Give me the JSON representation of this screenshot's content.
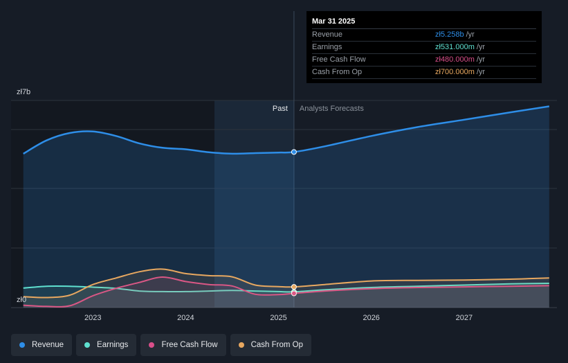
{
  "chart_data": {
    "type": "line",
    "y_axis": {
      "ticks": [
        "zł7b",
        "zł0"
      ],
      "ylim": [
        0,
        7000
      ]
    },
    "x_axis": {
      "ticks": [
        "2023",
        "2024",
        "2025",
        "2026",
        "2027"
      ],
      "xlim": [
        "2022-04",
        "2027-12"
      ]
    },
    "period_labels": {
      "past": "Past",
      "forecast": "Analysts Forecasts"
    },
    "grid": true,
    "legend_position": "bottom-left",
    "series": [
      {
        "name": "Revenue",
        "color": "#2e8ee8",
        "points": [
          [
            "2022-04",
            5200
          ],
          [
            "2022-07",
            5650
          ],
          [
            "2022-10",
            5900
          ],
          [
            "2023-01",
            5950
          ],
          [
            "2023-04",
            5800
          ],
          [
            "2023-07",
            5550
          ],
          [
            "2023-10",
            5400
          ],
          [
            "2024-01",
            5350
          ],
          [
            "2024-04",
            5250
          ],
          [
            "2024-07",
            5200
          ],
          [
            "2024-10",
            5220
          ],
          [
            "2025-01",
            5240
          ],
          [
            "2025-03",
            5258
          ],
          [
            "2025-07",
            5450
          ],
          [
            "2026-01",
            5800
          ],
          [
            "2026-07",
            6100
          ],
          [
            "2027-01",
            6350
          ],
          [
            "2027-07",
            6600
          ],
          [
            "2027-12",
            6800
          ]
        ]
      },
      {
        "name": "Earnings",
        "color": "#5fe0d0",
        "points": [
          [
            "2022-04",
            660
          ],
          [
            "2022-07",
            720
          ],
          [
            "2022-10",
            720
          ],
          [
            "2023-01",
            690
          ],
          [
            "2023-04",
            650
          ],
          [
            "2023-07",
            560
          ],
          [
            "2023-10",
            540
          ],
          [
            "2024-01",
            540
          ],
          [
            "2024-04",
            560
          ],
          [
            "2024-07",
            580
          ],
          [
            "2024-10",
            560
          ],
          [
            "2025-01",
            540
          ],
          [
            "2025-03",
            531
          ],
          [
            "2025-07",
            600
          ],
          [
            "2026-01",
            680
          ],
          [
            "2026-07",
            720
          ],
          [
            "2027-01",
            760
          ],
          [
            "2027-07",
            800
          ],
          [
            "2027-12",
            820
          ]
        ]
      },
      {
        "name": "Free Cash Flow",
        "color": "#d94f8a",
        "points": [
          [
            "2022-04",
            80
          ],
          [
            "2022-07",
            40
          ],
          [
            "2022-10",
            60
          ],
          [
            "2023-01",
            400
          ],
          [
            "2023-04",
            650
          ],
          [
            "2023-07",
            850
          ],
          [
            "2023-10",
            1030
          ],
          [
            "2024-01",
            880
          ],
          [
            "2024-04",
            780
          ],
          [
            "2024-07",
            730
          ],
          [
            "2024-10",
            450
          ],
          [
            "2025-01",
            440
          ],
          [
            "2025-03",
            480
          ],
          [
            "2025-07",
            560
          ],
          [
            "2026-01",
            640
          ],
          [
            "2026-07",
            680
          ],
          [
            "2027-01",
            700
          ],
          [
            "2027-07",
            720
          ],
          [
            "2027-12",
            740
          ]
        ]
      },
      {
        "name": "Cash From Op",
        "color": "#e8a860",
        "points": [
          [
            "2022-04",
            370
          ],
          [
            "2022-07",
            340
          ],
          [
            "2022-10",
            420
          ],
          [
            "2023-01",
            780
          ],
          [
            "2023-04",
            1000
          ],
          [
            "2023-07",
            1210
          ],
          [
            "2023-10",
            1300
          ],
          [
            "2024-01",
            1150
          ],
          [
            "2024-04",
            1080
          ],
          [
            "2024-07",
            1040
          ],
          [
            "2024-10",
            760
          ],
          [
            "2025-01",
            710
          ],
          [
            "2025-03",
            700
          ],
          [
            "2025-07",
            780
          ],
          [
            "2026-01",
            900
          ],
          [
            "2026-07",
            920
          ],
          [
            "2027-01",
            930
          ],
          [
            "2027-07",
            960
          ],
          [
            "2027-12",
            1000
          ]
        ]
      }
    ],
    "tooltip": {
      "date": "Mar 31 2025",
      "rows": [
        {
          "label": "Revenue",
          "value": "zł5.258b",
          "unit": "/yr",
          "color": "#2e8ee8"
        },
        {
          "label": "Earnings",
          "value": "zł531.000m",
          "unit": "/yr",
          "color": "#5fe0d0"
        },
        {
          "label": "Free Cash Flow",
          "value": "zł480.000m",
          "unit": "/yr",
          "color": "#d94f8a"
        },
        {
          "label": "Cash From Op",
          "value": "zł700.000m",
          "unit": "/yr",
          "color": "#e8a860"
        }
      ]
    }
  },
  "legend": [
    {
      "label": "Revenue",
      "color": "#2e8ee8"
    },
    {
      "label": "Earnings",
      "color": "#5fe0d0"
    },
    {
      "label": "Free Cash Flow",
      "color": "#d94f8a"
    },
    {
      "label": "Cash From Op",
      "color": "#e8a860"
    }
  ]
}
